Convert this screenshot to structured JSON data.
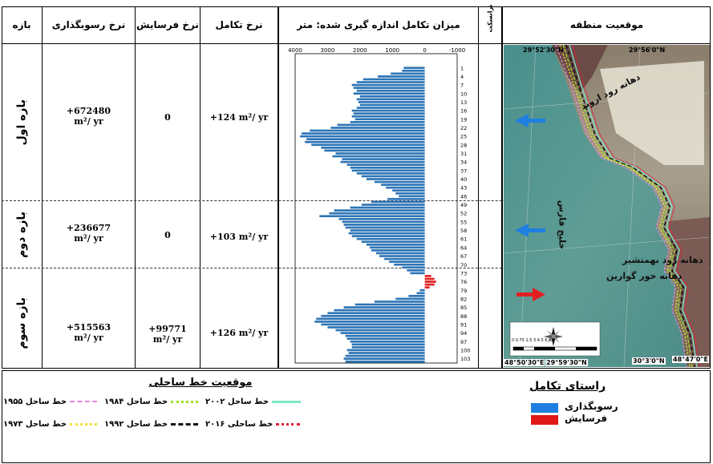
{
  "headers": {
    "period": "بازه",
    "deposition": "نرخ رسوبگذاری",
    "erosion": "نرخ فرسایش",
    "evolution": "نرخ تکامل",
    "chart": "میزان تکامل اندازه گیری شده: متر",
    "transect": "ترانسکت",
    "location": "موقعیت منطقه"
  },
  "periods": [
    {
      "name": "بازه اول",
      "deposition": "+672480",
      "deposition_unit": "m²/ yr",
      "erosion": "0",
      "erosion_unit": "",
      "evolution": "+124 m²/ yr"
    },
    {
      "name": "بازه دوم",
      "deposition": "+236677",
      "deposition_unit": "m²/ yr",
      "erosion": "0",
      "erosion_unit": "",
      "evolution": "+103 m²/ yr"
    },
    {
      "name": "بازه سوم",
      "deposition": "+515563",
      "deposition_unit": "m²/ yr",
      "erosion": "+99771",
      "erosion_unit": "m²/ yr",
      "evolution": "+126 m²/ yr"
    }
  ],
  "map": {
    "coords_top": [
      "29°52'30\"N",
      "29°56'0\"N"
    ],
    "coords_bottom": [
      "48°50'30\"E",
      "29°59'30\"N",
      "30°3'0\"N",
      "48°47'0\"E"
    ],
    "labels": [
      "دهانه رود اروند",
      "خلیج فارس",
      "دهانه رود بهمنشیر",
      "دهانه خور گوارین"
    ],
    "scale_text": "0 0.75 1.5     3      4.5      6 KM",
    "colors": {
      "deposition_arrow": "#1e7fe0",
      "erosion_arrow": "#e02020"
    }
  },
  "legend": {
    "shoreline_title": "موقعیت خط ساحلی",
    "lines": [
      {
        "label": "خط ساحل ۱۹۵۵",
        "color": "#e08ae0"
      },
      {
        "label": "خط ساحل ۱۹۸۴",
        "color": "#9be31c"
      },
      {
        "label": "خط ساحل ۲۰۰۲",
        "color": "#7fe5c9"
      },
      {
        "label": "خط ساحل ۱۹۷۳",
        "color": "#f4e235"
      },
      {
        "label": "خط ساحل ۱۹۹۲",
        "color": "#111111"
      },
      {
        "label": "خط ساحلی ۲۰۱۶",
        "color": "#e0203a"
      }
    ],
    "evolution_title": "راستای تکامل",
    "deposition_label": "رسوبگذاری",
    "erosion_label": "فرسایش",
    "deposition_color": "#1f7fe0",
    "erosion_color": "#e01818"
  },
  "chart_data": {
    "type": "bar",
    "orientation": "horizontal",
    "x_axis": "reversed",
    "xlim": [
      -1000,
      4000
    ],
    "x_ticks": [
      4000,
      3000,
      2000,
      1000,
      0,
      -1000
    ],
    "y_tick_labels": [
      "1",
      "4",
      "7",
      "10",
      "13",
      "16",
      "19",
      "22",
      "25",
      "28",
      "31",
      "34",
      "37",
      "40",
      "43",
      "46",
      "49",
      "52",
      "55",
      "58",
      "61",
      "64",
      "67",
      "70",
      "73",
      "76",
      "79",
      "82",
      "85",
      "88",
      "91",
      "94",
      "97",
      "100",
      "103"
    ],
    "transects": [
      1,
      2,
      3,
      4,
      5,
      6,
      7,
      8,
      9,
      10,
      11,
      12,
      13,
      14,
      15,
      16,
      17,
      18,
      19,
      20,
      21,
      22,
      23,
      24,
      25,
      26,
      27,
      28,
      29,
      30,
      31,
      32,
      33,
      34,
      35,
      36,
      37,
      38,
      39,
      40,
      41,
      42,
      43,
      44,
      45,
      46,
      47,
      48,
      49,
      50,
      51,
      52,
      53,
      54,
      55,
      56,
      57,
      58,
      59,
      60,
      61,
      62,
      63,
      64,
      65,
      66,
      67,
      68,
      69,
      70,
      71,
      72,
      73,
      74,
      75,
      76,
      77,
      78,
      79,
      80,
      81,
      82,
      83,
      84,
      85,
      86,
      87,
      88,
      89,
      90,
      91,
      92,
      93,
      94,
      95,
      96,
      97,
      98,
      99,
      100,
      101,
      102,
      103,
      104
    ],
    "values": [
      650,
      700,
      1050,
      1450,
      1900,
      2100,
      2250,
      2200,
      2100,
      2200,
      2000,
      2100,
      2050,
      2000,
      2100,
      2250,
      2200,
      2250,
      2150,
      2300,
      2700,
      2900,
      3550,
      3800,
      3850,
      3650,
      3700,
      3500,
      3200,
      3100,
      2750,
      2850,
      2550,
      2600,
      2400,
      2300,
      2250,
      2100,
      1950,
      1800,
      1550,
      1350,
      1200,
      1000,
      900,
      800,
      1150,
      1650,
      1950,
      2300,
      2800,
      2950,
      3250,
      2650,
      2550,
      2500,
      2450,
      2300,
      2350,
      2250,
      2100,
      1950,
      1800,
      1700,
      1650,
      1500,
      1400,
      1250,
      1100,
      950,
      700,
      550,
      450,
      -200,
      -300,
      -350,
      -300,
      -150,
      150,
      250,
      500,
      900,
      1550,
      2150,
      2500,
      2800,
      3000,
      3200,
      3350,
      3400,
      3200,
      3000,
      2750,
      2600,
      2450,
      2400,
      2300,
      2250,
      2250,
      2400,
      2350,
      2450,
      2500,
      2450
    ],
    "bar_colors": {
      "positive": "#2e75b6",
      "negative": "#e02020"
    },
    "grid": false
  }
}
